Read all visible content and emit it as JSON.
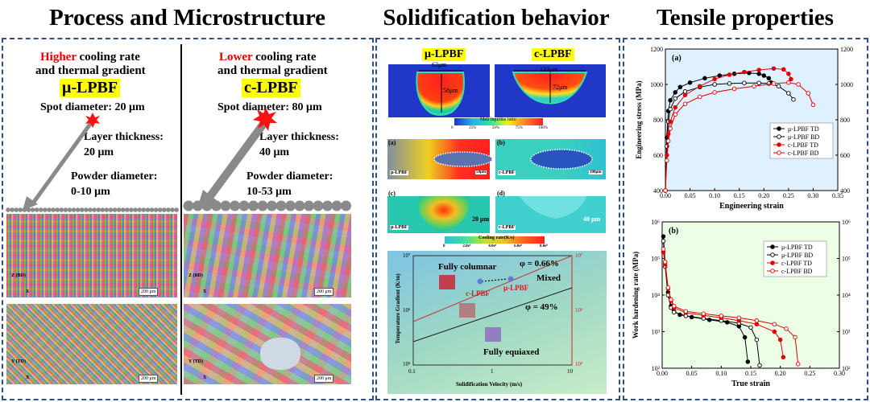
{
  "titles": {
    "process": "Process and Microstructure",
    "solid": "Solidification behavior",
    "tensile": "Tensile properties"
  },
  "process": {
    "left": {
      "emph": "Higher",
      "line1_rest": " cooling rate",
      "line2": "and thermal gradient",
      "name": "μ-LPBF",
      "spot": "Spot diameter: 20 μm",
      "layer_label": "Layer thickness:",
      "layer_value": "20 μm",
      "powder_label": "Powder diameter:",
      "powder_value": "0-10 μm"
    },
    "right": {
      "emph": "Lower",
      "line1_rest": " cooling rate",
      "line2": "and thermal gradient",
      "name": "c-LPBF",
      "spot": "Spot diameter: 80 μm",
      "layer_label": "Layer thickness:",
      "layer_value": "40 μm",
      "powder_label": "Powder diameter:",
      "powder_value": "10-53 μm"
    },
    "scale": "200 μm",
    "axis_z": "Z (BD)",
    "axis_y": "Y (TD)",
    "axis_x": "X"
  },
  "solid": {
    "top_left": "μ-LPBF",
    "top_right": "c-LPBF",
    "width_left": "63μm",
    "depth_left": "58μm",
    "width_right": "133μm",
    "depth_right": "72μm",
    "bar1_title": "Melt liquidus ratio",
    "bar1_ticks": [
      "0",
      "25%",
      "50%",
      "75%",
      "100%"
    ],
    "a": "(a)",
    "b": "(b)",
    "c": "(c)",
    "d": "(d)",
    "lbl_mu": "μ-LPBF",
    "lbl_c": "c-LPBF",
    "scale_a": "50μm",
    "scale_b": "100μm",
    "scale_c": "20 μm",
    "scale_d": "40 μm",
    "bar2_title": "Cooling rate(K/s)",
    "bar2_ticks": [
      "0",
      "2.0e⁶",
      "4.0e⁶",
      "6.0e⁶",
      "8.0e⁶"
    ],
    "map_ylabel": "Temperature Gradient (K/m)",
    "map_xlabel": "Solidification Velocity (m/s)",
    "map_yticks": [
      "10⁷",
      "10⁶",
      "10⁵"
    ],
    "map_xticks": [
      "0.1",
      "1",
      "10"
    ],
    "fully_columnar": "Fully columnar",
    "phi1": "φ = 0.66%",
    "mixed": "Mixed",
    "phi2": "φ = 49%",
    "fully_equiaxed": "Fully equiaxed",
    "map_c": "c-LPBF",
    "map_mu": "μ-LPBF"
  },
  "chart_data": [
    {
      "type": "line",
      "label": "(a)",
      "xlabel": "Engineering strain",
      "ylabel": "Engineering stress (MPa)",
      "xlim": [
        0.0,
        0.35
      ],
      "ylim": [
        400,
        1200
      ],
      "xticks": [
        "0.00",
        "0.05",
        "0.10",
        "0.15",
        "0.20",
        "0.25",
        "0.30",
        "0.35"
      ],
      "yticks": [
        "400",
        "600",
        "800",
        "1000",
        "1200"
      ],
      "legend_position": "bottom-right",
      "series": [
        {
          "name": "μ-LPBF TD",
          "color": "#000000",
          "filled": true,
          "x": [
            0.0,
            0.003,
            0.006,
            0.01,
            0.02,
            0.03,
            0.05,
            0.08,
            0.11,
            0.14,
            0.17,
            0.19,
            0.2,
            0.21,
            0.215
          ],
          "y": [
            400,
            700,
            850,
            910,
            955,
            985,
            1010,
            1035,
            1050,
            1060,
            1065,
            1060,
            1050,
            1035,
            1010
          ]
        },
        {
          "name": "μ-LPBF BD",
          "color": "#000000",
          "filled": false,
          "x": [
            0.0,
            0.003,
            0.006,
            0.01,
            0.02,
            0.04,
            0.07,
            0.1,
            0.13,
            0.16,
            0.19,
            0.21,
            0.23,
            0.25,
            0.26
          ],
          "y": [
            400,
            650,
            790,
            860,
            920,
            960,
            985,
            1000,
            1005,
            1008,
            1008,
            1005,
            990,
            950,
            915
          ]
        },
        {
          "name": "c-LPBF TD",
          "color": "#e00000",
          "filled": true,
          "x": [
            0.0,
            0.003,
            0.006,
            0.01,
            0.02,
            0.04,
            0.07,
            0.1,
            0.13,
            0.16,
            0.19,
            0.22,
            0.24,
            0.25,
            0.255
          ],
          "y": [
            400,
            600,
            720,
            790,
            870,
            940,
            990,
            1030,
            1055,
            1070,
            1082,
            1090,
            1085,
            1060,
            1030
          ]
        },
        {
          "name": "c-LPBF BD",
          "color": "#e00000",
          "filled": false,
          "x": [
            0.0,
            0.003,
            0.006,
            0.01,
            0.02,
            0.04,
            0.07,
            0.1,
            0.14,
            0.18,
            0.22,
            0.25,
            0.27,
            0.29,
            0.3
          ],
          "y": [
            400,
            570,
            680,
            750,
            830,
            890,
            930,
            955,
            975,
            990,
            1005,
            1010,
            1000,
            950,
            885
          ]
        }
      ]
    },
    {
      "type": "line",
      "label": "(b)",
      "xlabel": "True strain",
      "ylabel": "Work hardening rate (MPa)",
      "xlim": [
        0.0,
        0.3
      ],
      "ylog": true,
      "ylim": [
        100,
        1000000
      ],
      "xticks": [
        "0.00",
        "0.05",
        "0.10",
        "0.15",
        "0.20",
        "0.25",
        "0.30"
      ],
      "yticks": [
        "10²",
        "10³",
        "10⁴",
        "10⁵",
        "10⁶"
      ],
      "legend_position": "top-right",
      "series": [
        {
          "name": "μ-LPBF TD",
          "color": "#000000",
          "filled": true,
          "x": [
            0.002,
            0.005,
            0.01,
            0.015,
            0.02,
            0.03,
            0.05,
            0.08,
            0.11,
            0.13,
            0.14,
            0.145
          ],
          "y": [
            400000,
            80000,
            12000,
            5000,
            3600,
            2900,
            2500,
            2100,
            1800,
            1400,
            700,
            150
          ]
        },
        {
          "name": "μ-LPBF BD",
          "color": "#000000",
          "filled": false,
          "x": [
            0.002,
            0.005,
            0.01,
            0.015,
            0.02,
            0.04,
            0.07,
            0.1,
            0.13,
            0.15,
            0.16,
            0.165
          ],
          "y": [
            300000,
            60000,
            10000,
            4500,
            3400,
            2700,
            2300,
            2000,
            1700,
            1300,
            600,
            120
          ]
        },
        {
          "name": "c-LPBF TD",
          "color": "#e00000",
          "filled": true,
          "x": [
            0.002,
            0.005,
            0.01,
            0.015,
            0.02,
            0.04,
            0.07,
            0.1,
            0.13,
            0.16,
            0.19,
            0.2,
            0.205
          ],
          "y": [
            150000,
            70000,
            15000,
            7000,
            4500,
            3300,
            2800,
            2400,
            2000,
            1600,
            1000,
            600,
            200
          ]
        },
        {
          "name": "c-LPBF BD",
          "color": "#e00000",
          "filled": false,
          "x": [
            0.002,
            0.005,
            0.01,
            0.015,
            0.02,
            0.04,
            0.07,
            0.1,
            0.13,
            0.16,
            0.19,
            0.21,
            0.225,
            0.23
          ],
          "y": [
            180000,
            80000,
            16000,
            7500,
            5000,
            3600,
            3100,
            2700,
            2400,
            2000,
            1600,
            1200,
            700,
            130
          ]
        }
      ]
    }
  ]
}
